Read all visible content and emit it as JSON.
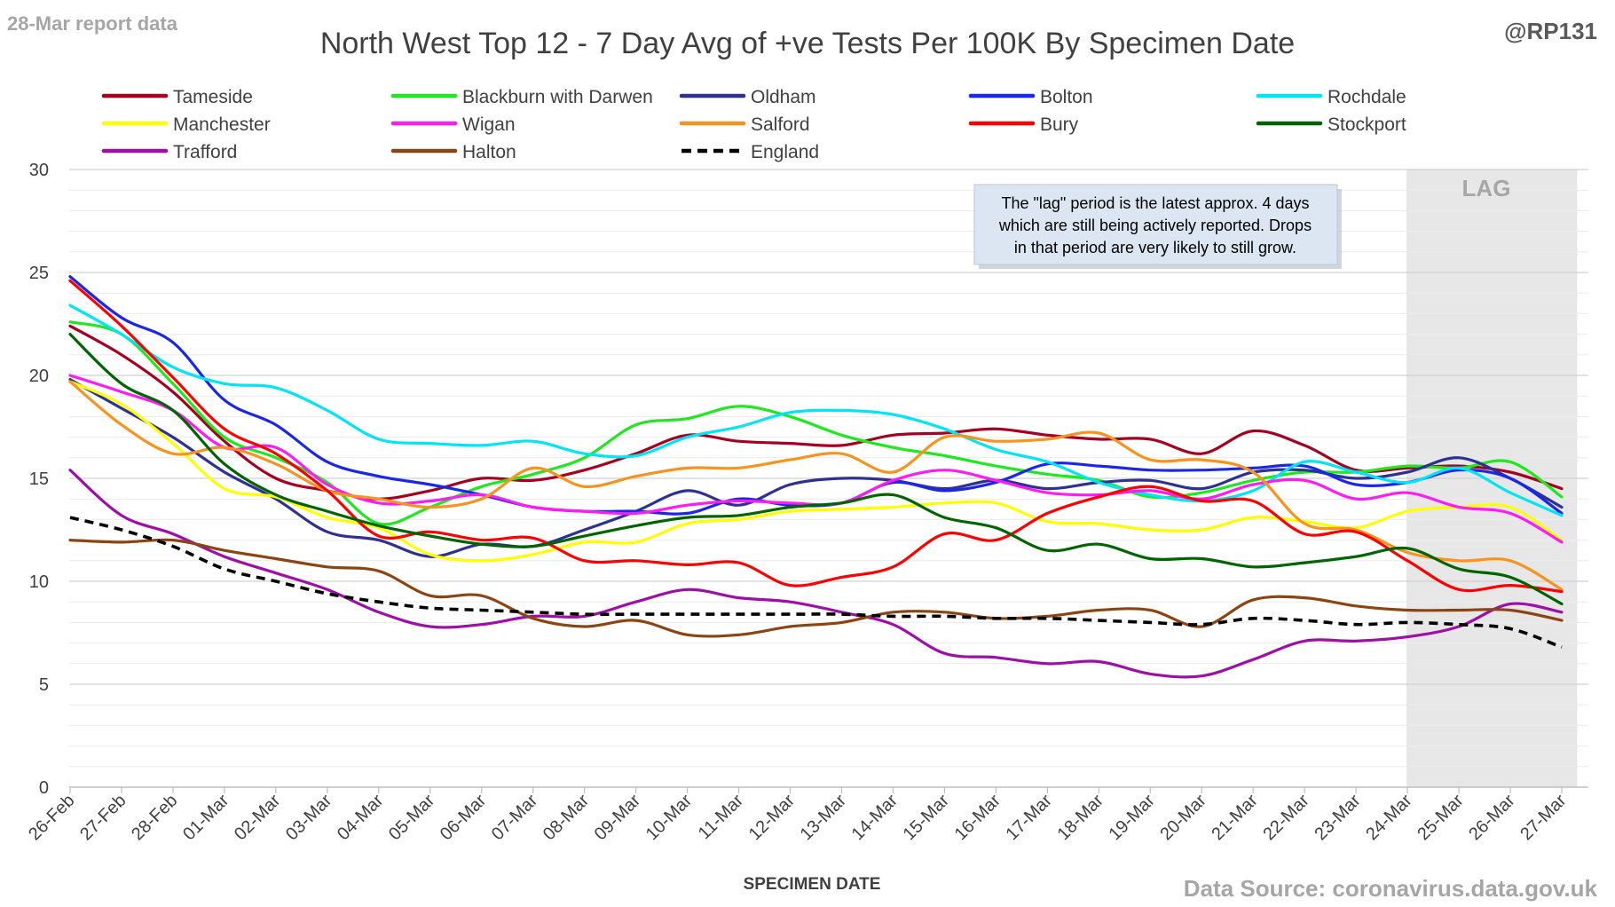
{
  "header": {
    "report_label": "28-Mar report data",
    "handle": "@RP131",
    "source": "Data Source: coronavirus.data.gov.uk"
  },
  "annotation": {
    "lines": [
      "The \"lag\" period is the latest approx. 4 days",
      "which are still being actively reported.  Drops",
      "in that period are very likely to still grow."
    ]
  },
  "lag_label": "LAG",
  "chart_data": {
    "type": "line",
    "title": "North West Top 12 - 7 Day Avg of +ve Tests Per 100K By Specimen Date",
    "xlabel": "SPECIMEN DATE",
    "ylabel": "",
    "ylim": [
      0,
      30
    ],
    "yticks": [
      0,
      5,
      10,
      15,
      20,
      25,
      30
    ],
    "grid": true,
    "legend_position": "top",
    "lag_start": "24-Mar",
    "lag_end": "27-Mar",
    "categories": [
      "26-Feb",
      "27-Feb",
      "28-Feb",
      "01-Mar",
      "02-Mar",
      "03-Mar",
      "04-Mar",
      "05-Mar",
      "06-Mar",
      "07-Mar",
      "08-Mar",
      "09-Mar",
      "10-Mar",
      "11-Mar",
      "12-Mar",
      "13-Mar",
      "14-Mar",
      "15-Mar",
      "16-Mar",
      "17-Mar",
      "18-Mar",
      "19-Mar",
      "20-Mar",
      "21-Mar",
      "22-Mar",
      "23-Mar",
      "24-Mar",
      "25-Mar",
      "26-Mar",
      "27-Mar"
    ],
    "series": [
      {
        "name": "Tameside",
        "color": "#a50021",
        "dash": "",
        "values": [
          22.4,
          21.0,
          19.2,
          16.8,
          15.0,
          14.4,
          14.0,
          14.4,
          15.0,
          14.9,
          15.4,
          16.2,
          17.1,
          16.8,
          16.7,
          16.6,
          17.1,
          17.2,
          17.4,
          17.1,
          16.9,
          16.9,
          16.2,
          17.3,
          16.6,
          15.4,
          15.5,
          15.6,
          15.3,
          14.5
        ]
      },
      {
        "name": "Blackburn with Darwen",
        "color": "#1ee81e",
        "dash": "",
        "values": [
          22.6,
          22.0,
          19.6,
          17.0,
          16.0,
          14.8,
          12.8,
          13.6,
          14.6,
          15.2,
          16.0,
          17.6,
          17.9,
          18.5,
          18.0,
          17.1,
          16.5,
          16.1,
          15.6,
          15.2,
          14.9,
          14.1,
          14.3,
          14.9,
          15.3,
          15.3,
          15.6,
          15.5,
          15.8,
          14.1
        ]
      },
      {
        "name": "Oldham",
        "color": "#2e3192",
        "dash": "",
        "values": [
          19.8,
          18.4,
          17.0,
          15.3,
          14.0,
          12.4,
          12.0,
          11.2,
          11.8,
          11.7,
          12.5,
          13.4,
          14.4,
          13.7,
          14.7,
          15.0,
          14.9,
          14.5,
          14.9,
          14.5,
          14.8,
          14.9,
          14.5,
          15.3,
          15.4,
          15.0,
          15.3,
          16.0,
          15.0,
          13.6
        ]
      },
      {
        "name": "Bolton",
        "color": "#1b27e8",
        "dash": "",
        "values": [
          24.8,
          22.8,
          21.6,
          18.8,
          17.6,
          15.8,
          15.1,
          14.7,
          14.2,
          13.6,
          13.4,
          13.4,
          13.3,
          14.0,
          13.7,
          13.8,
          14.8,
          14.4,
          14.8,
          15.7,
          15.6,
          15.4,
          15.4,
          15.5,
          15.6,
          14.7,
          14.8,
          15.4,
          15.0,
          13.3
        ]
      },
      {
        "name": "Rochdale",
        "color": "#00e5f5",
        "dash": "",
        "values": [
          23.4,
          22.0,
          20.4,
          19.6,
          19.4,
          18.3,
          16.9,
          16.7,
          16.6,
          16.8,
          16.2,
          16.1,
          17.0,
          17.5,
          18.2,
          18.3,
          18.1,
          17.4,
          16.4,
          15.8,
          14.8,
          14.2,
          13.9,
          14.4,
          15.8,
          15.3,
          14.8,
          15.5,
          14.3,
          13.2
        ]
      },
      {
        "name": "Manchester",
        "color": "#ffff00",
        "dash": "",
        "values": [
          19.7,
          18.6,
          16.7,
          14.5,
          14.1,
          13.1,
          12.6,
          11.3,
          11.0,
          11.3,
          11.9,
          11.9,
          12.8,
          13.0,
          13.4,
          13.5,
          13.6,
          13.8,
          13.8,
          12.9,
          12.8,
          12.5,
          12.5,
          13.1,
          12.9,
          12.6,
          13.4,
          13.6,
          13.6,
          12.0
        ]
      },
      {
        "name": "Wigan",
        "color": "#ff1cf2",
        "dash": "",
        "values": [
          20.0,
          19.2,
          18.3,
          16.5,
          16.5,
          14.7,
          13.8,
          13.9,
          14.2,
          13.6,
          13.4,
          13.3,
          13.7,
          13.9,
          13.8,
          13.8,
          14.9,
          15.4,
          14.9,
          14.3,
          14.2,
          14.4,
          14.0,
          14.7,
          14.9,
          14.0,
          14.3,
          13.6,
          13.3,
          11.9
        ]
      },
      {
        "name": "Salford",
        "color": "#f7931e",
        "dash": "",
        "values": [
          19.7,
          17.6,
          16.2,
          16.5,
          15.7,
          14.4,
          14.0,
          13.6,
          14.0,
          15.5,
          14.6,
          15.1,
          15.5,
          15.5,
          15.9,
          16.2,
          15.3,
          17.0,
          16.8,
          16.9,
          17.2,
          15.9,
          15.9,
          15.3,
          12.8,
          12.5,
          11.4,
          11.0,
          11.0,
          9.6
        ]
      },
      {
        "name": "Bury",
        "color": "#ff0000",
        "dash": "",
        "values": [
          24.6,
          22.4,
          19.9,
          17.4,
          16.2,
          14.4,
          12.2,
          12.4,
          12.0,
          12.1,
          11.0,
          11.0,
          10.8,
          10.9,
          9.8,
          10.2,
          10.7,
          12.3,
          12.0,
          13.3,
          14.1,
          14.6,
          13.9,
          13.9,
          12.3,
          12.4,
          11.0,
          9.6,
          9.8,
          9.5
        ]
      },
      {
        "name": "Stockport",
        "color": "#006400",
        "dash": "",
        "values": [
          22.0,
          19.6,
          18.3,
          15.7,
          14.2,
          13.4,
          12.7,
          12.2,
          11.8,
          11.7,
          12.2,
          12.7,
          13.1,
          13.2,
          13.6,
          13.8,
          14.2,
          13.1,
          12.6,
          11.5,
          11.8,
          11.1,
          11.1,
          10.7,
          10.9,
          11.2,
          11.6,
          10.6,
          10.2,
          8.9
        ]
      },
      {
        "name": "Trafford",
        "color": "#9e0fa8",
        "dash": "",
        "values": [
          15.4,
          13.2,
          12.3,
          11.2,
          10.4,
          9.6,
          8.5,
          7.8,
          7.9,
          8.3,
          8.3,
          9.0,
          9.6,
          9.2,
          9.0,
          8.5,
          7.9,
          6.5,
          6.3,
          6.0,
          6.1,
          5.5,
          5.4,
          6.2,
          7.1,
          7.1,
          7.3,
          7.8,
          8.9,
          8.5
        ]
      },
      {
        "name": "Halton",
        "color": "#8b4513",
        "dash": "",
        "values": [
          12.0,
          11.9,
          12.0,
          11.5,
          11.1,
          10.7,
          10.5,
          9.3,
          9.3,
          8.2,
          7.8,
          8.1,
          7.4,
          7.4,
          7.8,
          8.0,
          8.5,
          8.5,
          8.2,
          8.3,
          8.6,
          8.6,
          7.8,
          9.1,
          9.2,
          8.8,
          8.6,
          8.6,
          8.6,
          8.1
        ]
      },
      {
        "name": "England",
        "color": "#000000",
        "dash": "10,7",
        "values": [
          13.1,
          12.5,
          11.7,
          10.6,
          10.0,
          9.4,
          9.0,
          8.7,
          8.6,
          8.5,
          8.4,
          8.4,
          8.4,
          8.4,
          8.4,
          8.4,
          8.3,
          8.3,
          8.2,
          8.2,
          8.1,
          8.0,
          7.9,
          8.2,
          8.1,
          7.9,
          8.0,
          7.9,
          7.7,
          6.8
        ]
      }
    ]
  }
}
